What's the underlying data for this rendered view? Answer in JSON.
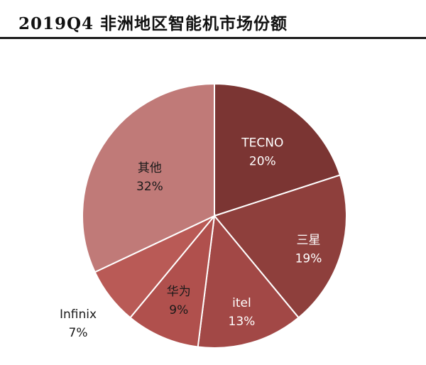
{
  "title": "2019Q4 非洲地区智能机市场份额",
  "chart_data": {
    "type": "pie",
    "title": "2019Q4 非洲地区智能机市场份额",
    "start_angle_deg": 0,
    "direction": "clockwise",
    "slices": [
      {
        "label": "TECNO",
        "value": 20,
        "pct_label": "20%",
        "color": "#7b3533",
        "text_color": "#ffffff",
        "label_position": "inside"
      },
      {
        "label": "三星",
        "value": 19,
        "pct_label": "19%",
        "color": "#8e3f3c",
        "text_color": "#ffffff",
        "label_position": "inside"
      },
      {
        "label": "itel",
        "value": 13,
        "pct_label": "13%",
        "color": "#a24846",
        "text_color": "#ffffff",
        "label_position": "inside"
      },
      {
        "label": "华为",
        "value": 9,
        "pct_label": "9%",
        "color": "#b0504d",
        "text_color": "#1a1a1a",
        "label_position": "inside"
      },
      {
        "label": "Infinix",
        "value": 7,
        "pct_label": "7%",
        "color": "#b95a56",
        "text_color": "#1a1a1a",
        "label_position": "outside"
      },
      {
        "label": "其他",
        "value": 32,
        "pct_label": "32%",
        "color": "#c07a78",
        "text_color": "#1a1a1a",
        "label_position": "inside"
      }
    ],
    "legend": "none"
  }
}
